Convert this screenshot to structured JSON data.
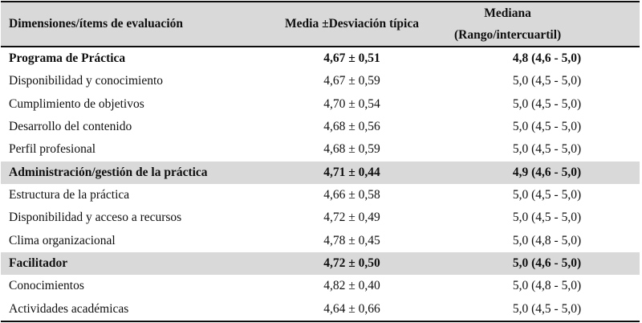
{
  "table": {
    "header": {
      "dimensions": "Dimensiones/ítems de evaluación",
      "media": "Media ±Desviación típica",
      "mediana_line1": "Mediana",
      "mediana_line2": "(Rango/intercuartil)"
    },
    "rows": [
      {
        "label": "Programa de Práctica",
        "media": "4,67 ± 0,51",
        "mediana": "4,8 (4,6 - 5,0)",
        "bold": true,
        "shaded": false
      },
      {
        "label": "Disponibilidad y conocimiento",
        "media": "4,67 ± 0,59",
        "mediana": "5,0 (4,5 - 5,0)",
        "bold": false,
        "shaded": false
      },
      {
        "label": "Cumplimiento de objetivos",
        "media": "4,70 ± 0,54",
        "mediana": "5,0 (4,5 - 5,0)",
        "bold": false,
        "shaded": false
      },
      {
        "label": "Desarrollo del contenido",
        "media": "4,68 ± 0,56",
        "mediana": "5,0 (4,5 - 5,0)",
        "bold": false,
        "shaded": false
      },
      {
        "label": "Perfil profesional",
        "media": "4,68 ± 0,59",
        "mediana": "5,0 (4,5 - 5,0)",
        "bold": false,
        "shaded": false
      },
      {
        "label": "Administración/gestión de la práctica",
        "media": "4,71 ± 0,44",
        "mediana": "4,9 (4,6 - 5,0)",
        "bold": true,
        "shaded": true
      },
      {
        "label": "Estructura de la práctica",
        "media": "4,66 ± 0,58",
        "mediana": "5,0 (4,5 - 5,0)",
        "bold": false,
        "shaded": false
      },
      {
        "label": "Disponibilidad y acceso a recursos",
        "media": "4,72 ± 0,49",
        "mediana": "5,0 (4,5 - 5,0)",
        "bold": false,
        "shaded": false
      },
      {
        "label": "Clima organizacional",
        "media": "4,78 ± 0,45",
        "mediana": "5,0 (4,8 - 5,0)",
        "bold": false,
        "shaded": false
      },
      {
        "label": "Facilitador",
        "media": "4,72 ± 0,50",
        "mediana": "5,0 (4,6 - 5,0)",
        "bold": true,
        "shaded": true
      },
      {
        "label": "Conocimientos",
        "media": "4,82 ± 0,40",
        "mediana": "5,0 (4,8 - 5,0)",
        "bold": false,
        "shaded": false
      },
      {
        "label": "Actividades académicas",
        "media": "4,64 ± 0,66",
        "mediana": "5,0 (4,5 - 5,0)",
        "bold": false,
        "shaded": false
      }
    ],
    "colors": {
      "header_bg": "#d9d9d9",
      "shaded_row_bg": "#d9d9d9",
      "rule": "#0d0d0d",
      "text": "#0f0f0f"
    }
  }
}
